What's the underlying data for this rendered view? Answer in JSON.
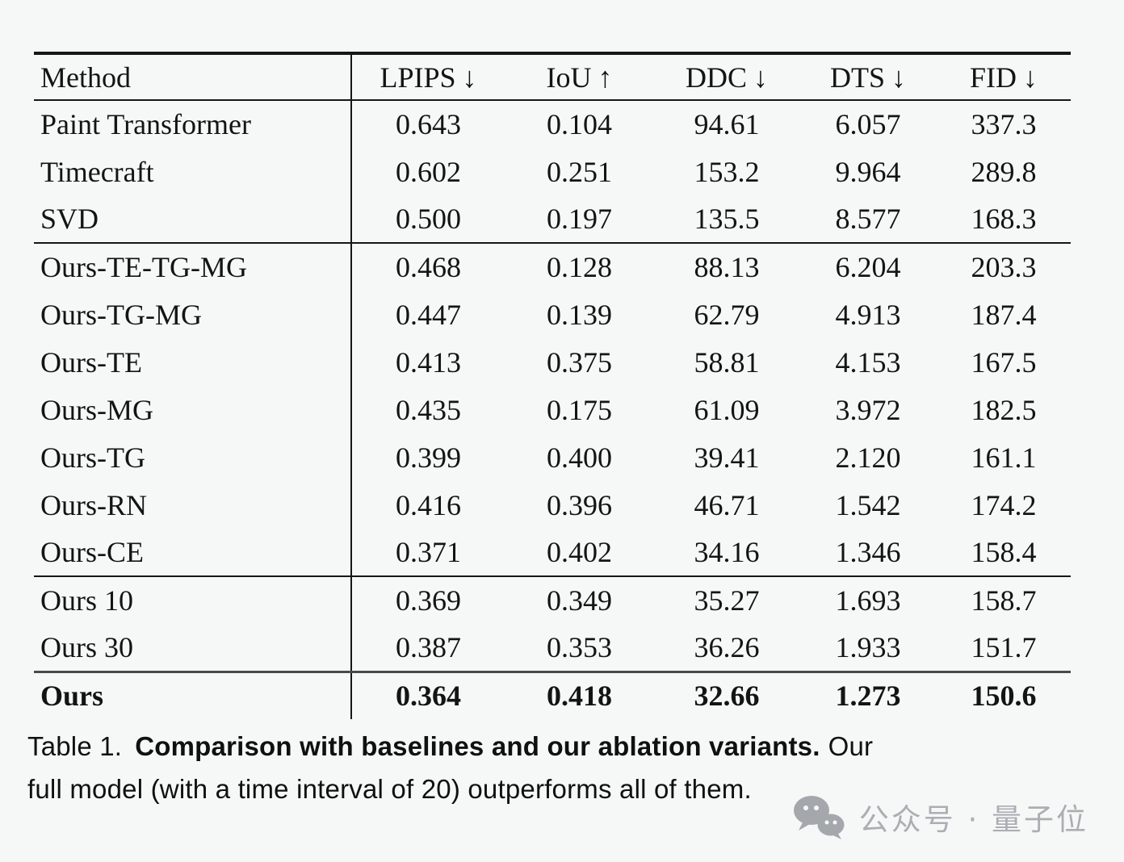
{
  "table": {
    "header": {
      "method": "Method",
      "cols": [
        {
          "label": "LPIPS",
          "arrow": "↓"
        },
        {
          "label": "IoU",
          "arrow": "↑"
        },
        {
          "label": "DDC",
          "arrow": "↓"
        },
        {
          "label": "DTS",
          "arrow": "↓"
        },
        {
          "label": "FID",
          "arrow": "↓"
        }
      ]
    },
    "sections": [
      {
        "name": "baselines",
        "rows": [
          {
            "method": "Paint Transformer",
            "values": [
              "0.643",
              "0.104",
              "94.61",
              "6.057",
              "337.3"
            ]
          },
          {
            "method": "Timecraft",
            "values": [
              "0.602",
              "0.251",
              "153.2",
              "9.964",
              "289.8"
            ]
          },
          {
            "method": "SVD",
            "values": [
              "0.500",
              "0.197",
              "135.5",
              "8.577",
              "168.3"
            ]
          }
        ]
      },
      {
        "name": "ablation-variants",
        "rows": [
          {
            "method": "Ours-TE-TG-MG",
            "values": [
              "0.468",
              "0.128",
              "88.13",
              "6.204",
              "203.3"
            ]
          },
          {
            "method": "Ours-TG-MG",
            "values": [
              "0.447",
              "0.139",
              "62.79",
              "4.913",
              "187.4"
            ]
          },
          {
            "method": "Ours-TE",
            "values": [
              "0.413",
              "0.375",
              "58.81",
              "4.153",
              "167.5"
            ]
          },
          {
            "method": "Ours-MG",
            "values": [
              "0.435",
              "0.175",
              "61.09",
              "3.972",
              "182.5"
            ]
          },
          {
            "method": "Ours-TG",
            "values": [
              "0.399",
              "0.400",
              "39.41",
              "2.120",
              "161.1"
            ]
          },
          {
            "method": "Ours-RN",
            "values": [
              "0.416",
              "0.396",
              "46.71",
              "1.542",
              "174.2"
            ]
          },
          {
            "method": "Ours-CE",
            "values": [
              "0.371",
              "0.402",
              "34.16",
              "1.346",
              "158.4"
            ]
          }
        ]
      },
      {
        "name": "time-intervals",
        "rows": [
          {
            "method": "Ours 10",
            "values": [
              "0.369",
              "0.349",
              "35.27",
              "1.693",
              "158.7"
            ]
          },
          {
            "method": "Ours 30",
            "values": [
              "0.387",
              "0.353",
              "36.26",
              "1.933",
              "151.7"
            ]
          }
        ]
      },
      {
        "name": "full-model",
        "rows": [
          {
            "method": "Ours",
            "values": [
              "0.364",
              "0.418",
              "32.66",
              "1.273",
              "150.6"
            ],
            "bold": true
          }
        ]
      }
    ]
  },
  "caption": {
    "line1_label": "Table 1.",
    "line1_bold": "Comparison with baselines and our ablation variants.",
    "line1_rest": "Our",
    "line2": "full model (with a time interval of 20) outperforms all of them."
  },
  "watermark": {
    "icon": "wechat-icon",
    "text": "公众号 · 量子位",
    "color": "#abafb3"
  }
}
